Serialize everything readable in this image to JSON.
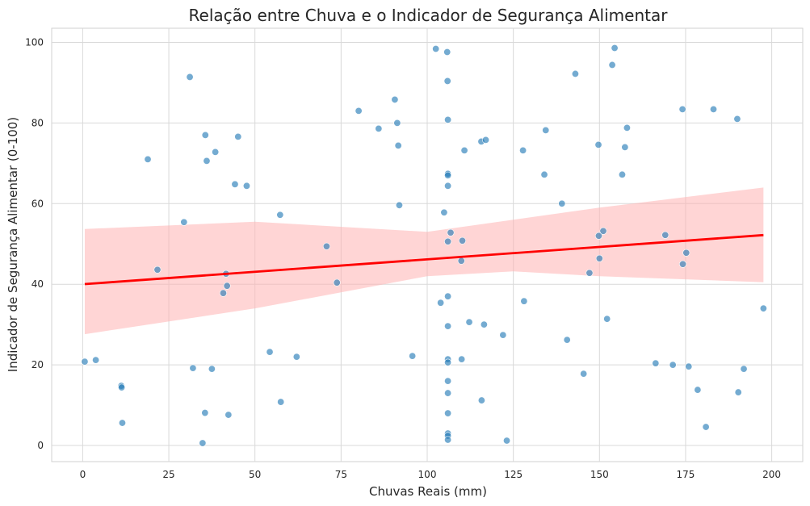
{
  "chart_data": {
    "type": "scatter",
    "title": "Relação entre Chuva e o Indicador de Segurança Alimentar",
    "xlabel": "Chuvas Reais (mm)",
    "ylabel": "Indicador de Segurança Alimentar (0-100)",
    "xlim": [
      -9,
      209
    ],
    "ylim": [
      -4,
      103.5
    ],
    "xticks": [
      0,
      25,
      50,
      75,
      100,
      125,
      150,
      175,
      200
    ],
    "yticks": [
      0,
      20,
      40,
      60,
      80,
      100
    ],
    "x_tick_labels": [
      "0",
      "25",
      "50",
      "75",
      "100",
      "125",
      "150",
      "175",
      "200"
    ],
    "y_tick_labels": [
      "0",
      "20",
      "40",
      "60",
      "80",
      "100"
    ],
    "grid": true,
    "style": "whitegrid",
    "colors": {
      "points": "#1f77b4",
      "regression_line": "#ff0000",
      "confidence_band": "#ffb3b3",
      "grid": "#d9d9d9"
    },
    "points": [
      [
        0.6,
        20.8
      ],
      [
        3.8,
        21.2
      ],
      [
        11.2,
        14.8
      ],
      [
        11.3,
        14.4
      ],
      [
        11.5,
        5.6
      ],
      [
        18.9,
        71.0
      ],
      [
        21.7,
        43.6
      ],
      [
        29.4,
        55.4
      ],
      [
        31.1,
        91.4
      ],
      [
        32.0,
        19.2
      ],
      [
        34.8,
        0.6
      ],
      [
        35.5,
        8.1
      ],
      [
        35.6,
        77.0
      ],
      [
        36.0,
        70.6
      ],
      [
        37.5,
        19.0
      ],
      [
        38.5,
        72.8
      ],
      [
        40.8,
        37.8
      ],
      [
        41.6,
        42.6
      ],
      [
        41.9,
        39.6
      ],
      [
        42.3,
        7.6
      ],
      [
        44.2,
        64.8
      ],
      [
        45.1,
        76.6
      ],
      [
        47.6,
        64.4
      ],
      [
        54.3,
        23.2
      ],
      [
        57.3,
        57.2
      ],
      [
        57.5,
        10.8
      ],
      [
        62.1,
        22.0
      ],
      [
        70.8,
        49.4
      ],
      [
        73.8,
        40.4
      ],
      [
        80.1,
        83.0
      ],
      [
        85.9,
        78.6
      ],
      [
        90.6,
        85.8
      ],
      [
        91.3,
        80.0
      ],
      [
        91.6,
        74.4
      ],
      [
        91.9,
        59.6
      ],
      [
        95.7,
        22.2
      ],
      [
        102.5,
        98.4
      ],
      [
        103.9,
        35.4
      ],
      [
        104.9,
        57.8
      ],
      [
        105.8,
        97.6
      ],
      [
        105.9,
        90.4
      ],
      [
        106.0,
        80.8
      ],
      [
        106.0,
        67.4
      ],
      [
        106.0,
        67.0
      ],
      [
        106.0,
        64.4
      ],
      [
        106.0,
        50.6
      ],
      [
        106.0,
        37.0
      ],
      [
        106.0,
        29.6
      ],
      [
        106.0,
        21.4
      ],
      [
        106.0,
        20.6
      ],
      [
        106.0,
        16.0
      ],
      [
        106.0,
        13.0
      ],
      [
        106.0,
        8.0
      ],
      [
        106.0,
        3.0
      ],
      [
        106.0,
        2.4
      ],
      [
        106.0,
        1.4
      ],
      [
        106.8,
        52.8
      ],
      [
        109.9,
        45.8
      ],
      [
        110.0,
        21.4
      ],
      [
        110.2,
        50.8
      ],
      [
        110.8,
        73.2
      ],
      [
        112.2,
        30.6
      ],
      [
        115.7,
        75.4
      ],
      [
        115.8,
        11.2
      ],
      [
        116.5,
        30.0
      ],
      [
        117.0,
        75.8
      ],
      [
        122.0,
        27.4
      ],
      [
        123.1,
        1.2
      ],
      [
        127.8,
        73.2
      ],
      [
        128.1,
        35.8
      ],
      [
        134.0,
        67.2
      ],
      [
        134.4,
        78.2
      ],
      [
        139.1,
        60.0
      ],
      [
        140.6,
        26.2
      ],
      [
        143.0,
        92.2
      ],
      [
        145.4,
        17.8
      ],
      [
        147.1,
        42.8
      ],
      [
        149.7,
        74.6
      ],
      [
        149.8,
        52.0
      ],
      [
        150.0,
        46.4
      ],
      [
        151.1,
        53.2
      ],
      [
        152.2,
        31.4
      ],
      [
        153.7,
        94.4
      ],
      [
        154.4,
        98.6
      ],
      [
        156.6,
        67.2
      ],
      [
        157.4,
        74.0
      ],
      [
        158.0,
        78.8
      ],
      [
        166.3,
        20.4
      ],
      [
        171.3,
        20.0
      ],
      [
        174.1,
        83.4
      ],
      [
        174.2,
        45.0
      ],
      [
        175.2,
        47.8
      ],
      [
        169.1,
        52.2
      ],
      [
        175.9,
        19.6
      ],
      [
        178.5,
        13.8
      ],
      [
        180.9,
        4.6
      ],
      [
        183.1,
        83.4
      ],
      [
        190.0,
        81.0
      ],
      [
        190.3,
        13.2
      ],
      [
        191.9,
        19.0
      ],
      [
        197.6,
        34.0
      ]
    ],
    "regression": {
      "x_range": [
        0.6,
        197.6
      ],
      "intercept": 40.0,
      "slope": 0.0617,
      "band_lower": [
        [
          0.6,
          27.6
        ],
        [
          50,
          34.0
        ],
        [
          100,
          42.0
        ],
        [
          125,
          43.2
        ],
        [
          150,
          42.0
        ],
        [
          197.6,
          40.5
        ]
      ],
      "band_upper": [
        [
          0.6,
          53.7
        ],
        [
          50,
          55.5
        ],
        [
          100,
          53.0
        ],
        [
          125,
          56.0
        ],
        [
          150,
          59.0
        ],
        [
          197.6,
          64.0
        ]
      ]
    }
  }
}
